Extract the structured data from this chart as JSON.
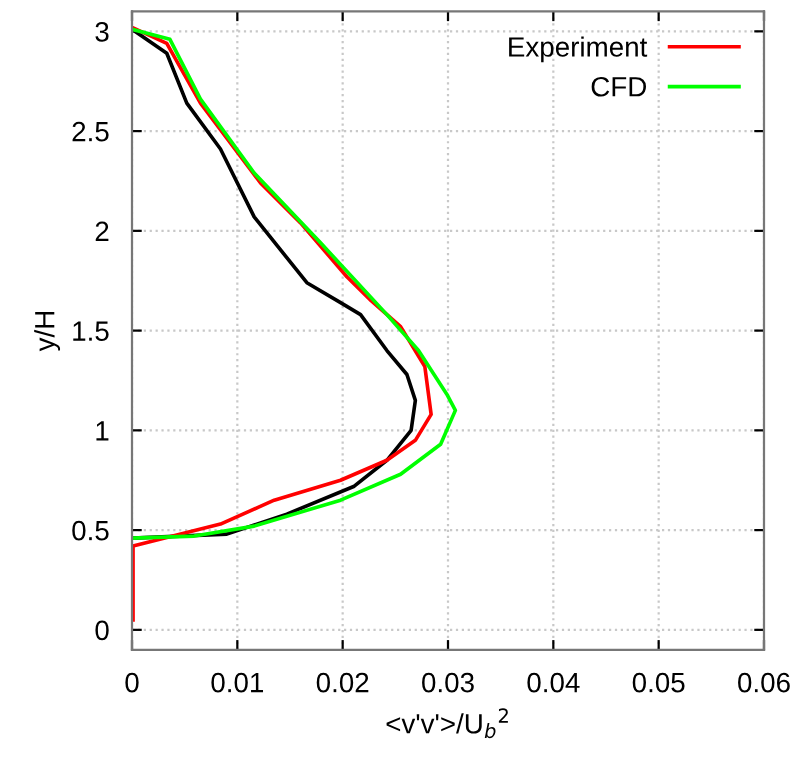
{
  "chart_data": {
    "type": "line",
    "xlabel": "<v'v'>/U$_{b}$$^{2}$",
    "ylabel": "y/H",
    "xlim": [
      0,
      0.06
    ],
    "xticks": [
      0,
      0.01,
      0.02,
      0.03,
      0.04,
      0.05,
      0.06
    ],
    "ylim": [
      -0.1,
      3.1
    ],
    "yticks": [
      0,
      0.5,
      1,
      1.5,
      2,
      2.5,
      3
    ],
    "grid": true,
    "legend": "top right",
    "line_style": "solid",
    "marker": "none",
    "series": [
      {
        "color": "#000000",
        "x": [
          0,
          0.0033,
          0.0052,
          0.0084,
          0.0116,
          0.0166,
          0.0198,
          0.0217,
          0.0242,
          0.0261,
          0.0269,
          0.0265,
          0.0242,
          0.0211,
          0.0147,
          0.009,
          0.0002
        ],
        "values": [
          3.01,
          2.89,
          2.64,
          2.41,
          2.07,
          1.74,
          1.64,
          1.58,
          1.4,
          1.28,
          1.15,
          1.0,
          0.85,
          0.72,
          0.58,
          0.48,
          0.46
        ]
      },
      {
        "name": "Experiment",
        "color": "#ff0000",
        "x": [
          0,
          0.0033,
          0.0065,
          0.0122,
          0.016,
          0.0204,
          0.0227,
          0.0255,
          0.0278,
          0.0284,
          0.0269,
          0.0242,
          0.0198,
          0.0135,
          0.0084,
          0.0001,
          0.0001
        ],
        "values": [
          3.02,
          2.94,
          2.64,
          2.24,
          2.04,
          1.77,
          1.65,
          1.52,
          1.32,
          1.08,
          0.95,
          0.85,
          0.75,
          0.65,
          0.53,
          0.42,
          0.05
        ]
      },
      {
        "name": "CFD",
        "color": "#00ff00",
        "x": [
          0,
          0.0036,
          0.0065,
          0.0116,
          0.0179,
          0.0242,
          0.0272,
          0.0299,
          0.0307,
          0.0293,
          0.0255,
          0.0198,
          0.0116,
          0.0059,
          0.0001
        ],
        "values": [
          3.01,
          2.96,
          2.66,
          2.29,
          1.94,
          1.58,
          1.4,
          1.18,
          1.1,
          0.93,
          0.78,
          0.65,
          0.52,
          0.47,
          0.46
        ]
      }
    ]
  }
}
